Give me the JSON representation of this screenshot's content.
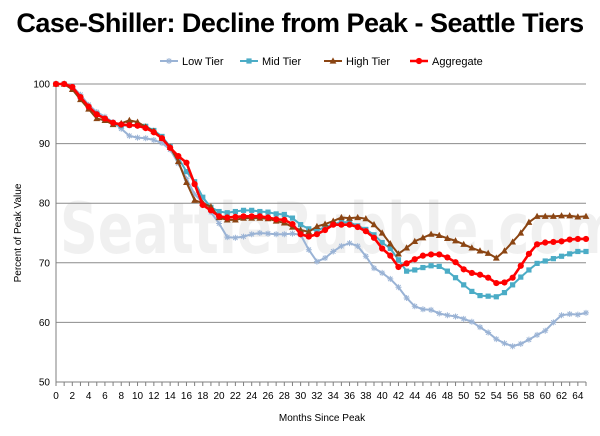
{
  "chart_data": {
    "type": "line",
    "title": "Case-Shiller: Decline from Peak - Seattle Tiers",
    "xlabel": "Months Since Peak",
    "ylabel": "Percent of Peak Value",
    "xlim": [
      0,
      65
    ],
    "ylim": [
      50,
      100
    ],
    "x_ticks": [
      0,
      2,
      4,
      6,
      8,
      10,
      12,
      14,
      16,
      18,
      20,
      22,
      24,
      26,
      28,
      30,
      32,
      34,
      36,
      38,
      40,
      42,
      44,
      46,
      48,
      50,
      52,
      54,
      56,
      58,
      60,
      62,
      64
    ],
    "y_ticks": [
      50,
      60,
      70,
      80,
      90,
      100
    ],
    "grid": "horizontal",
    "legend_position": "top",
    "watermark": "SeattleBubble.com",
    "x": [
      0,
      1,
      2,
      3,
      4,
      5,
      6,
      7,
      8,
      9,
      10,
      11,
      12,
      13,
      14,
      15,
      16,
      17,
      18,
      19,
      20,
      21,
      22,
      23,
      24,
      25,
      26,
      27,
      28,
      29,
      30,
      31,
      32,
      33,
      34,
      35,
      36,
      37,
      38,
      39,
      40,
      41,
      42,
      43,
      44,
      45,
      46,
      47,
      48,
      49,
      50,
      51,
      52,
      53,
      54,
      55,
      56,
      57,
      58,
      59,
      60,
      61,
      62,
      63,
      64,
      65
    ],
    "series": [
      {
        "name": "Low Tier",
        "color": "#9ab3d5",
        "marker": "star",
        "values": [
          100,
          100,
          99.6,
          98.2,
          96.5,
          95.3,
          94.5,
          93.6,
          92.5,
          91.3,
          91.0,
          90.9,
          90.6,
          90.1,
          89.0,
          86.7,
          84.1,
          81.5,
          80.1,
          78.5,
          76.6,
          74.3,
          74.2,
          74.4,
          74.8,
          75.0,
          74.9,
          74.8,
          74.8,
          74.9,
          74.7,
          72.2,
          70.2,
          70.8,
          71.9,
          72.8,
          73.3,
          72.8,
          71.1,
          69.1,
          68.3,
          67.3,
          65.9,
          64.1,
          62.7,
          62.2,
          62.1,
          61.5,
          61.2,
          61.0,
          60.6,
          60.1,
          59.2,
          58.3,
          57.2,
          56.5,
          56.0,
          56.4,
          57.1,
          57.9,
          58.6,
          60.0,
          61.2,
          61.4,
          61.3,
          61.6
        ]
      },
      {
        "name": "Mid Tier",
        "color": "#4bacc6",
        "marker": "square",
        "values": [
          100,
          100,
          99.5,
          97.8,
          96.1,
          95.0,
          94.1,
          93.3,
          93.0,
          93.1,
          93.1,
          92.9,
          92.2,
          91.2,
          89.5,
          87.6,
          85.3,
          83.6,
          81.0,
          79.3,
          78.6,
          78.4,
          78.6,
          78.8,
          78.8,
          78.6,
          78.5,
          78.2,
          78.1,
          77.5,
          76.4,
          75.7,
          75.4,
          76.0,
          76.5,
          76.8,
          76.8,
          76.2,
          75.6,
          74.7,
          73.4,
          72.4,
          70.5,
          68.6,
          68.8,
          69.2,
          69.5,
          69.4,
          68.6,
          67.5,
          66.3,
          65.2,
          64.5,
          64.4,
          64.3,
          65.0,
          66.3,
          67.6,
          68.8,
          69.9,
          70.3,
          70.7,
          71.1,
          71.5,
          71.9,
          71.9
        ]
      },
      {
        "name": "High Tier",
        "color": "#8b4513",
        "marker": "triangle",
        "values": [
          100,
          100,
          99.1,
          97.4,
          95.8,
          94.2,
          93.9,
          93.2,
          93.4,
          93.9,
          93.6,
          92.8,
          92.1,
          90.9,
          89.4,
          87.0,
          83.5,
          80.5,
          80.0,
          79.4,
          77.6,
          77.2,
          77.2,
          77.5,
          77.5,
          77.5,
          77.4,
          77.0,
          76.7,
          76.0,
          75.5,
          75.2,
          76.1,
          76.5,
          77.0,
          77.6,
          77.5,
          77.6,
          77.4,
          76.4,
          75.0,
          73.2,
          71.5,
          72.5,
          73.6,
          74.2,
          74.8,
          74.6,
          74.1,
          73.7,
          73.1,
          72.5,
          72.0,
          71.6,
          70.8,
          72.0,
          73.5,
          75.0,
          76.8,
          77.8,
          77.8,
          77.8,
          77.9,
          77.9,
          77.7,
          77.8
        ]
      },
      {
        "name": "Aggregate",
        "color": "#ff0000",
        "marker": "circle",
        "values": [
          100,
          100,
          99.5,
          97.8,
          96.2,
          94.9,
          94.2,
          93.5,
          93.2,
          93.1,
          93.0,
          92.6,
          91.9,
          90.9,
          89.3,
          87.9,
          86.8,
          83.2,
          79.7,
          78.8,
          77.8,
          77.6,
          77.7,
          77.8,
          77.8,
          77.8,
          77.6,
          77.3,
          77.2,
          76.5,
          74.8,
          74.4,
          74.8,
          75.5,
          76.4,
          76.4,
          76.4,
          76.0,
          75.3,
          74.2,
          72.4,
          71.2,
          69.3,
          69.9,
          70.6,
          71.2,
          71.4,
          71.4,
          70.9,
          70.1,
          68.9,
          68.3,
          68.0,
          67.5,
          66.6,
          66.7,
          67.5,
          69.5,
          71.5,
          73.1,
          73.4,
          73.5,
          73.6,
          73.9,
          74.0,
          74.0
        ]
      }
    ]
  }
}
